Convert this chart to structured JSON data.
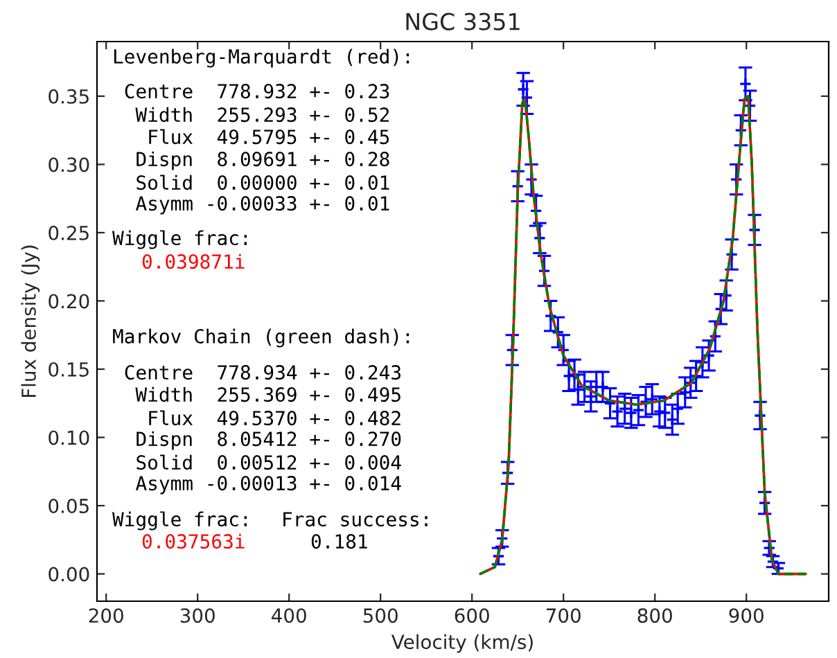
{
  "chart_data": {
    "type": "scatter",
    "title": "NGC 3351",
    "xlabel": "Velocity (km/s)",
    "ylabel": "Flux density (Jy)",
    "xlim": [
      190,
      990
    ],
    "ylim": [
      -0.02,
      0.39
    ],
    "xticks": [
      200,
      300,
      400,
      500,
      600,
      700,
      800,
      900
    ],
    "yticks": [
      {
        "value": 0.0,
        "label": "0.00"
      },
      {
        "value": 0.05,
        "label": "0.05"
      },
      {
        "value": 0.1,
        "label": "0.10"
      },
      {
        "value": 0.15,
        "label": "0.15"
      },
      {
        "value": 0.2,
        "label": "0.20"
      },
      {
        "value": 0.25,
        "label": "0.25"
      },
      {
        "value": 0.3,
        "label": "0.30"
      },
      {
        "value": 0.35,
        "label": "0.35"
      }
    ],
    "grid": false,
    "legend": false,
    "series": [
      {
        "color": "#0000ff",
        "marker": "cross",
        "x": [
          629,
          633,
          639,
          644,
          650,
          656,
          660,
          665,
          670,
          674,
          679,
          686,
          694,
          700,
          706,
          712,
          716,
          723,
          730,
          736,
          743,
          751,
          759,
          767,
          774,
          782,
          790,
          797,
          805,
          811,
          819,
          825,
          833,
          839,
          845,
          852,
          859,
          866,
          872,
          878,
          884,
          889,
          894,
          899,
          904,
          909,
          915,
          920,
          925,
          929,
          935
        ],
        "values": [
          0.013,
          0.026,
          0.074,
          0.164,
          0.284,
          0.355,
          0.349,
          0.289,
          0.266,
          0.246,
          0.222,
          0.189,
          0.177,
          0.164,
          0.145,
          0.146,
          0.135,
          0.137,
          0.13,
          0.137,
          0.137,
          0.125,
          0.119,
          0.121,
          0.118,
          0.12,
          0.126,
          0.128,
          0.119,
          0.118,
          0.113,
          0.121,
          0.133,
          0.14,
          0.145,
          0.155,
          0.16,
          0.174,
          0.194,
          0.204,
          0.234,
          0.289,
          0.325,
          0.359,
          0.343,
          0.252,
          0.116,
          0.052,
          0.019,
          0.009,
          0.004
        ],
        "errors": [
          0.006,
          0.006,
          0.008,
          0.011,
          0.011,
          0.012,
          0.012,
          0.011,
          0.011,
          0.011,
          0.011,
          0.011,
          0.011,
          0.011,
          0.011,
          0.011,
          0.011,
          0.011,
          0.011,
          0.011,
          0.011,
          0.011,
          0.011,
          0.011,
          0.011,
          0.011,
          0.011,
          0.011,
          0.011,
          0.011,
          0.011,
          0.011,
          0.011,
          0.011,
          0.011,
          0.011,
          0.011,
          0.011,
          0.011,
          0.011,
          0.011,
          0.011,
          0.011,
          0.012,
          0.011,
          0.011,
          0.01,
          0.008,
          0.005,
          0.004,
          0.004
        ]
      },
      {
        "type": "line",
        "color": "#ff0000",
        "line_style": "solid",
        "x": [
          609,
          625,
          633,
          640,
          645,
          650,
          655,
          658,
          662,
          667,
          675,
          685,
          700,
          720,
          750,
          780,
          810,
          840,
          860,
          875,
          885,
          893,
          898,
          902,
          906,
          912,
          920,
          928,
          935,
          965
        ],
        "values": [
          0.0,
          0.005,
          0.025,
          0.08,
          0.17,
          0.28,
          0.345,
          0.348,
          0.32,
          0.28,
          0.235,
          0.195,
          0.16,
          0.138,
          0.127,
          0.124,
          0.127,
          0.14,
          0.165,
          0.2,
          0.245,
          0.31,
          0.348,
          0.35,
          0.3,
          0.18,
          0.06,
          0.01,
          0.0,
          0.0
        ]
      },
      {
        "type": "line",
        "color": "#008000",
        "line_style": "dashed",
        "x": [
          609,
          625,
          633,
          640,
          645,
          650,
          655,
          658,
          662,
          667,
          675,
          685,
          700,
          720,
          750,
          780,
          810,
          840,
          860,
          875,
          885,
          893,
          898,
          902,
          906,
          912,
          920,
          928,
          935,
          965
        ],
        "values": [
          0.0,
          0.005,
          0.025,
          0.08,
          0.17,
          0.28,
          0.345,
          0.348,
          0.32,
          0.28,
          0.235,
          0.195,
          0.16,
          0.138,
          0.127,
          0.124,
          0.127,
          0.14,
          0.165,
          0.2,
          0.245,
          0.31,
          0.348,
          0.35,
          0.3,
          0.18,
          0.06,
          0.01,
          0.0,
          0.0
        ]
      }
    ],
    "annotations": [
      "Levenberg-Marquardt (red):",
      " Centre  778.932 +- 0.23",
      "  Width  255.293 +- 0.52",
      "   Flux  49.5795 +- 0.45",
      "  Dispn  8.09691 +- 0.28",
      "  Solid  0.00000 +- 0.01",
      "  Asymm -0.00033 +- 0.01",
      "Wiggle frac:",
      "0.039871i",
      "Markov Chain (green dash):",
      " Centre  778.934 +- 0.243",
      "  Width  255.369 +- 0.495",
      "   Flux  49.5370 +- 0.482",
      "  Dispn  8.05412 +- 0.270",
      "  Solid  0.00512 +- 0.004",
      "  Asymm -0.00013 +- 0.014",
      "Wiggle frac:",
      "0.037563i",
      "Frac success:",
      "0.181"
    ]
  }
}
